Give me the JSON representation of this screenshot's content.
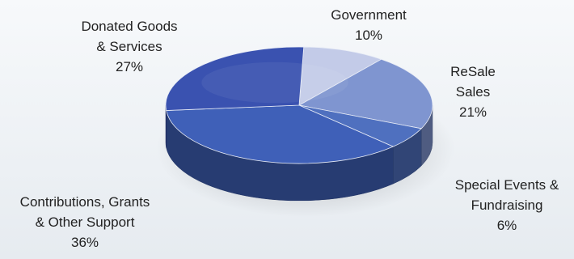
{
  "chart_data": {
    "type": "pie",
    "title": "",
    "slices": [
      {
        "lines": [
          "Government"
        ],
        "pct_label": "10%",
        "value": 10,
        "color": "#c3cbe8"
      },
      {
        "lines": [
          "ReSale",
          "Sales"
        ],
        "pct_label": "21%",
        "value": 21,
        "color": "#7f95d0"
      },
      {
        "lines": [
          "Special Events &",
          "Fundraising"
        ],
        "pct_label": "6%",
        "value": 6,
        "color": "#4f70bf"
      },
      {
        "lines": [
          "Contributions, Grants",
          "& Other Support"
        ],
        "pct_label": "36%",
        "value": 36,
        "color": "#3f60b8"
      },
      {
        "lines": [
          "Donated Goods",
          "& Services"
        ],
        "pct_label": "27%",
        "value": 27,
        "color": "#3a52b0"
      }
    ],
    "style": "3d-perspective"
  }
}
